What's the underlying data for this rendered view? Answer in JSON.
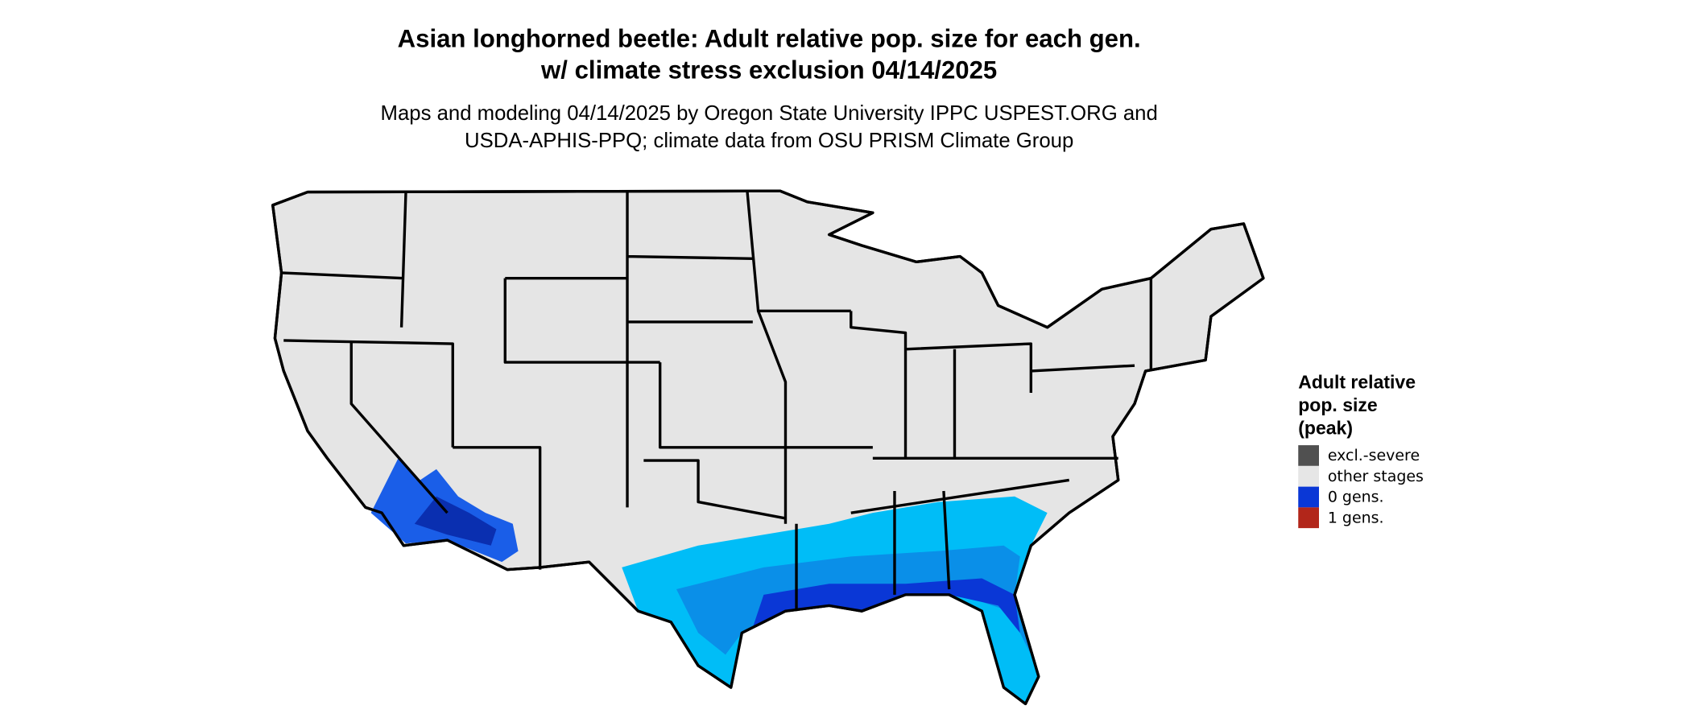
{
  "header": {
    "title": [
      "Asian longhorned beetle: Adult relative pop. size for each gen.",
      "w/ climate stress exclusion 04/14/2025"
    ],
    "subtitle": [
      "Maps and modeling 04/14/2025 by Oregon State University IPPC USPEST.ORG and",
      "USDA-APHIS-PPQ; climate data from OSU PRISM Climate Group"
    ]
  },
  "legend": {
    "title": [
      "Adult relative",
      "pop. size",
      "(peak)"
    ],
    "items": [
      {
        "label": "excl.-severe",
        "color": "#505050"
      },
      {
        "label": "other stages",
        "color": "#e6e6e6"
      },
      {
        "label": "0 gens.",
        "color": "#0a37d6"
      },
      {
        "label": "1 gens.",
        "color": "#b2261a"
      }
    ]
  }
}
